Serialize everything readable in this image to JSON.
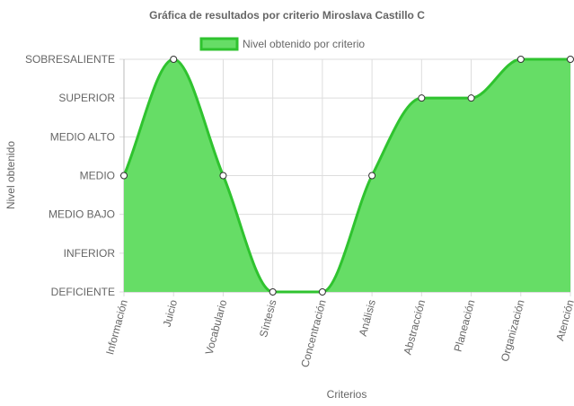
{
  "chart_data": {
    "type": "area",
    "title": "Gráfica de resultados por criterio Miroslava Castillo C",
    "xlabel": "Criterios",
    "ylabel": "Nivel obtenido",
    "categories": [
      "Información",
      "Juicio",
      "Vocabulario",
      "Síntesis",
      "Concentración",
      "Análisis",
      "Abstracción",
      "Planeación",
      "Organización",
      "Atención"
    ],
    "y_levels": [
      "DEFICIENTE",
      "INFERIOR",
      "MEDIO BAJO",
      "MEDIO",
      "MEDIO ALTO",
      "SUPERIOR",
      "SOBRESALIENTE"
    ],
    "ylim": [
      0,
      6
    ],
    "series": [
      {
        "name": "Nivel obtenido por criterio",
        "values": [
          3,
          6,
          3,
          0,
          0,
          3,
          5,
          5,
          6,
          6
        ],
        "color": "#2fc32f",
        "fill": "#66dd66"
      }
    ],
    "legend_position": "top",
    "grid": true
  }
}
